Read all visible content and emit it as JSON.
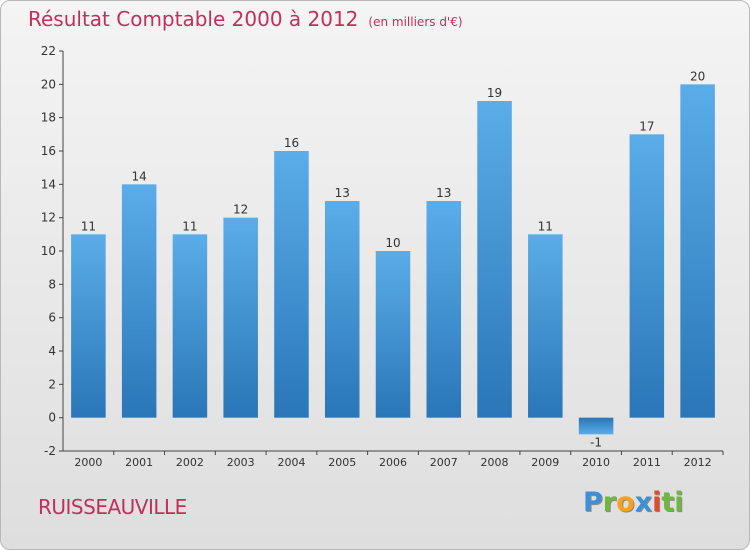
{
  "header": {
    "title": "Résultat Comptable 2000 à 2012",
    "subtitle": "(en milliers d'€)"
  },
  "location": "RUISSEAUVILLE",
  "logo": {
    "letters": [
      "P",
      "r",
      "o",
      "x",
      "i",
      "ti"
    ]
  },
  "colors": {
    "title": "#c0305a",
    "bar_top": "#5aade8",
    "bar_bottom": "#2a76b8",
    "axis": "#444444",
    "grid": "#cfcfcf"
  },
  "chart_data": {
    "type": "bar",
    "title": "Résultat Comptable 2000 à 2012",
    "subtitle": "(en milliers d'€)",
    "xlabel": "",
    "ylabel": "",
    "categories": [
      "2000",
      "2001",
      "2002",
      "2003",
      "2004",
      "2005",
      "2006",
      "2007",
      "2008",
      "2009",
      "2010",
      "2011",
      "2012"
    ],
    "values": [
      11,
      14,
      11,
      12,
      16,
      13,
      10,
      13,
      19,
      11,
      -1,
      17,
      20
    ],
    "ylim": [
      -2,
      22
    ],
    "yticks": [
      -2,
      0,
      2,
      4,
      6,
      8,
      10,
      12,
      14,
      16,
      18,
      20,
      22
    ],
    "grid": false,
    "legend": "none"
  }
}
